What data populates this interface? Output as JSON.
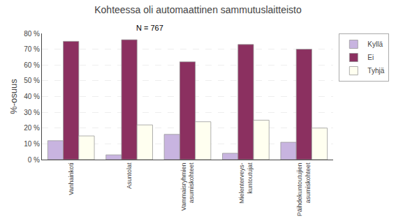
{
  "chart_data": {
    "type": "bar",
    "title": "Kohteessa oli automaattinen sammutuslaitteisto",
    "annotation": "N = 767",
    "ylabel": "%-osuus",
    "categories": [
      "Vanhainkoti",
      "Asuntolat",
      "Vammaisryhmien\nasumiskohteet",
      "Mielenterveys-\nkuntoutujat",
      "Päihdekuntoutujien\nasumiskohteet"
    ],
    "series": [
      {
        "name": "Kyllä",
        "color": "#c8b4e0",
        "values": [
          12,
          3,
          16,
          4,
          11
        ]
      },
      {
        "name": "Ei",
        "color": "#8b3060",
        "values": [
          75,
          76,
          62,
          73,
          70
        ]
      },
      {
        "name": "Tyhjä",
        "color": "#fffff0",
        "values": [
          15,
          22,
          24,
          25,
          20
        ]
      }
    ],
    "ylim": [
      0,
      80
    ],
    "yticks": [
      {
        "value": 0,
        "label": "0 %"
      },
      {
        "value": 10,
        "label": "10 %"
      },
      {
        "value": 20,
        "label": "20 %"
      },
      {
        "value": 30,
        "label": "30 %"
      },
      {
        "value": 40,
        "label": "40 %"
      },
      {
        "value": 50,
        "label": "50 %"
      },
      {
        "value": 60,
        "label": "60 %"
      },
      {
        "value": 70,
        "label": "70 %"
      },
      {
        "value": 80,
        "label": "80 %"
      }
    ],
    "grid": true,
    "legend": "upper right"
  }
}
